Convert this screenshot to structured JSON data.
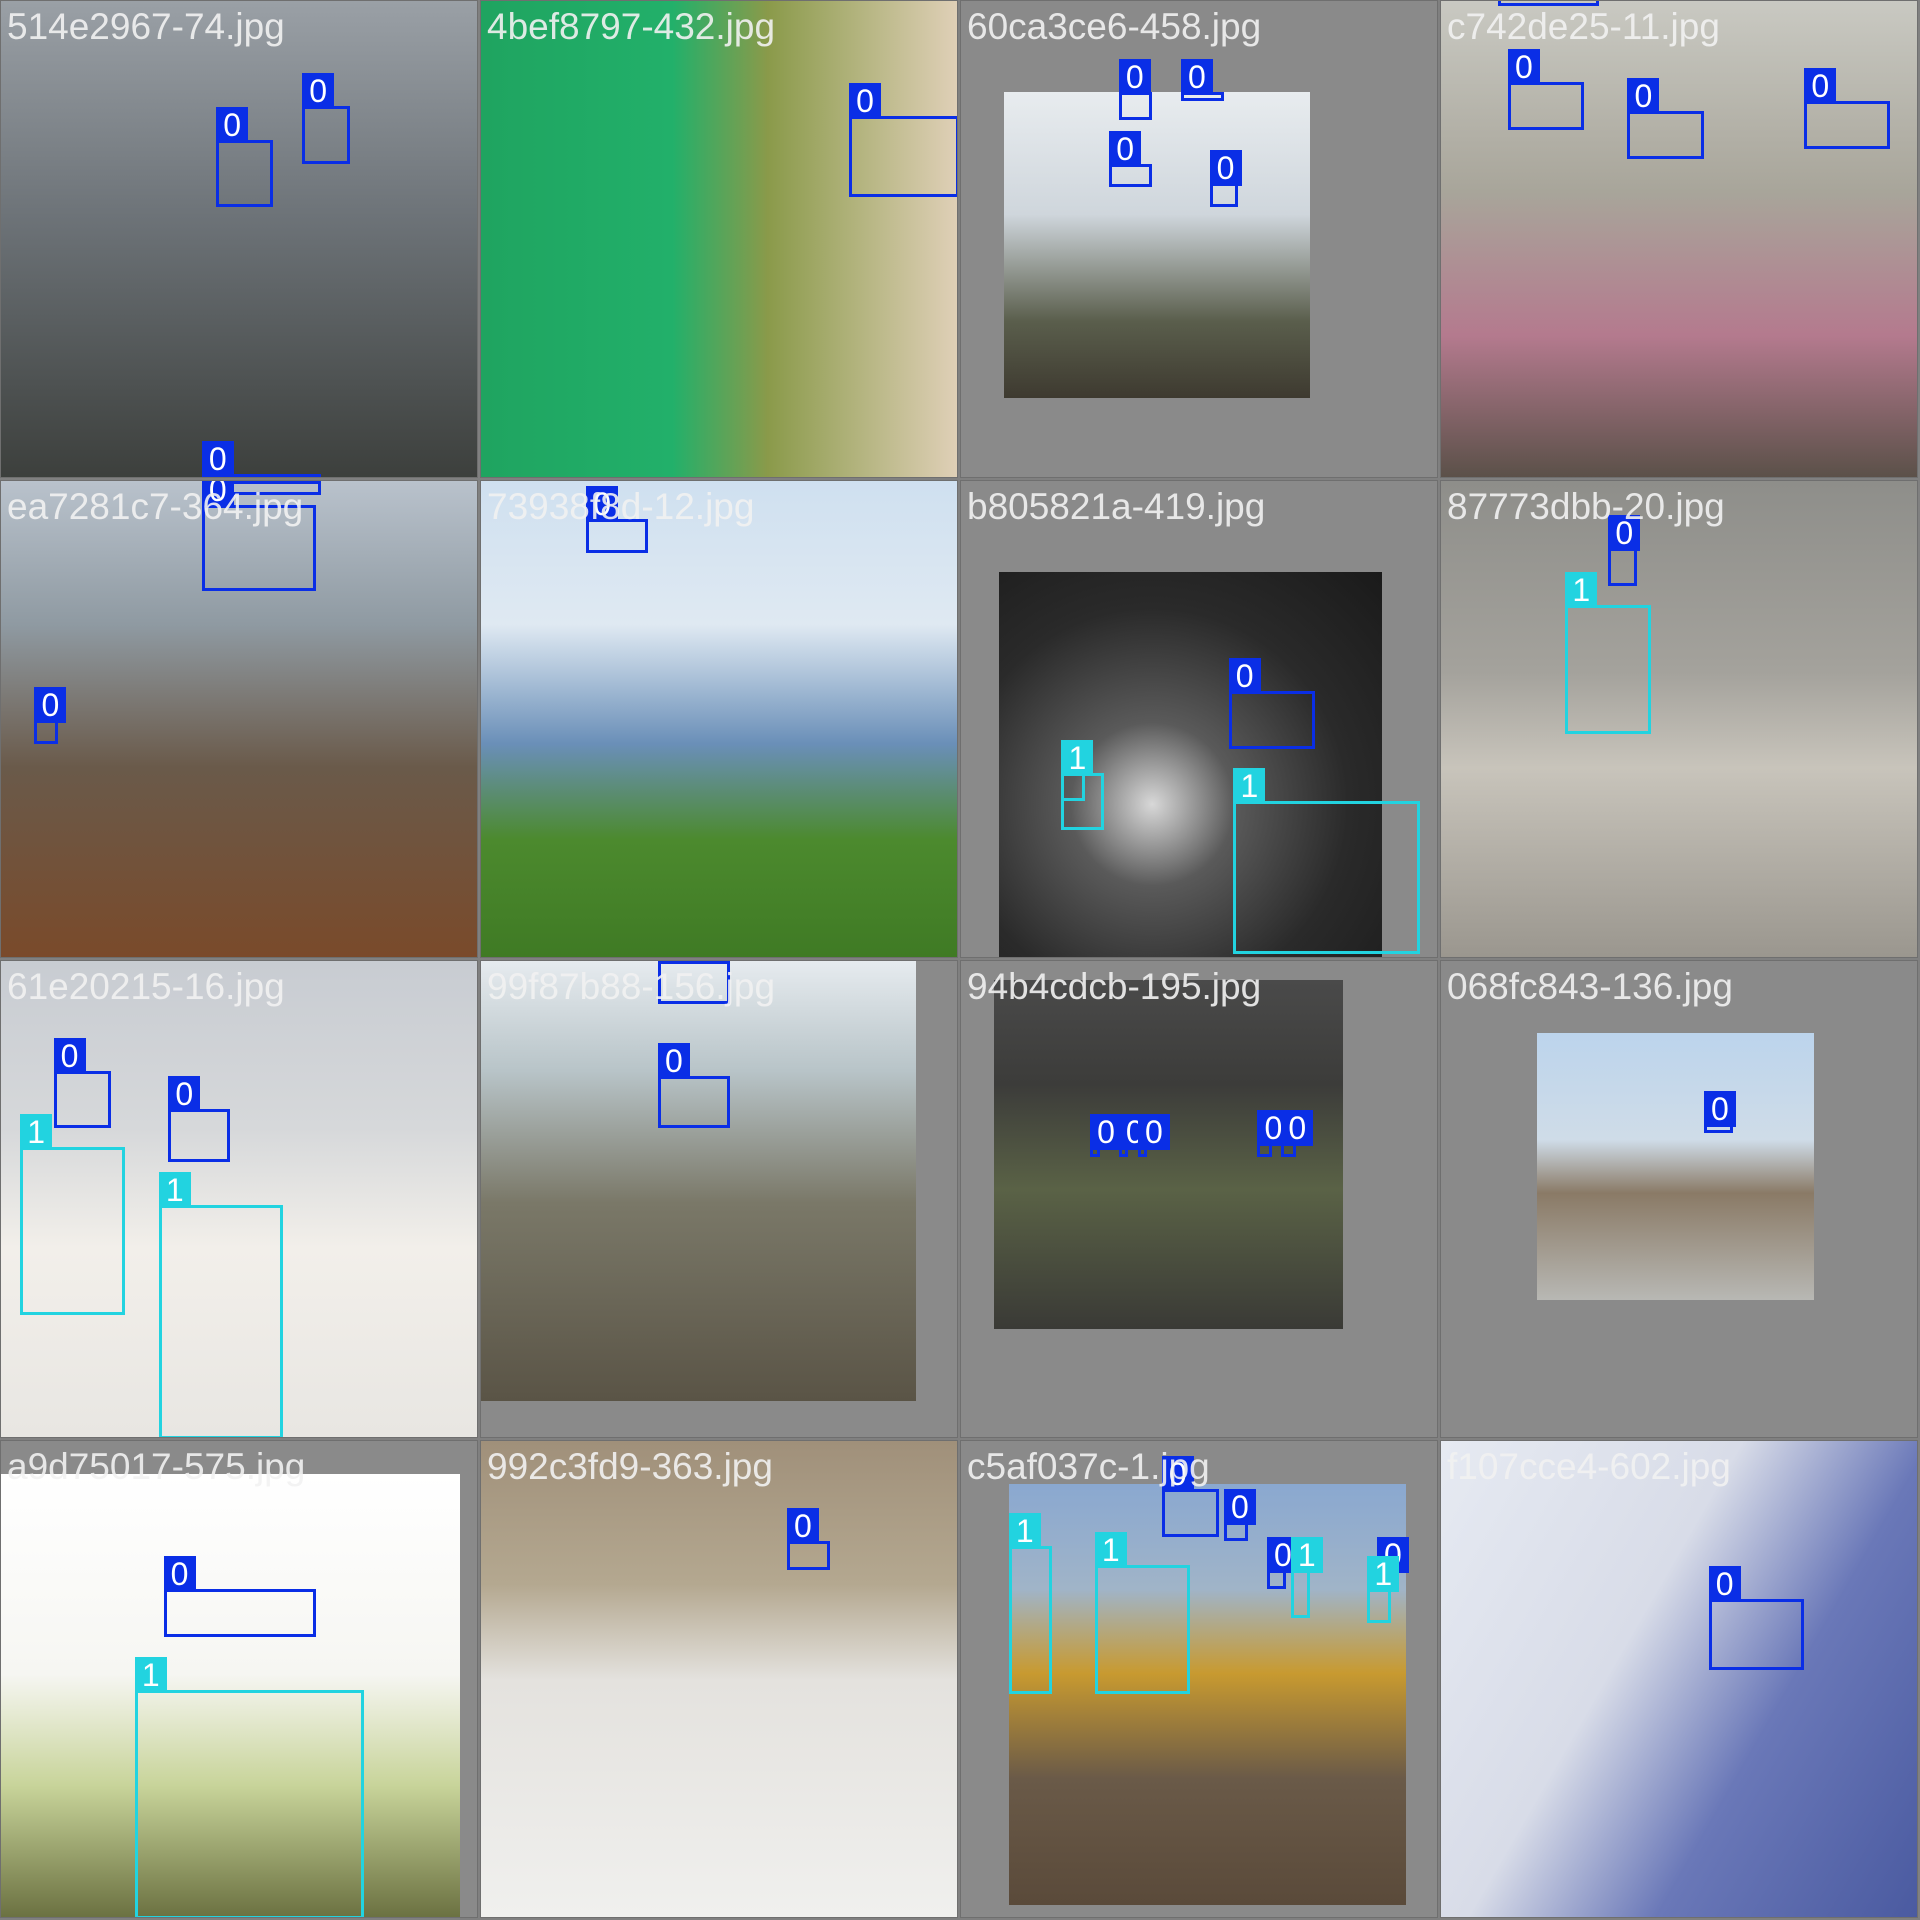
{
  "colors": {
    "class0": "#0a2ee6",
    "class1": "#22d3e0",
    "background": "#808080"
  },
  "tiles": [
    {
      "filename": "514e2967-74.jpg",
      "scene": "linear-gradient(180deg,#9aa0a6 0%,#6d7378 45%,#3c3f3c 100%)",
      "photo": [
        0,
        0,
        1,
        1
      ],
      "boxes": [
        {
          "cls": "0",
          "b": [
            0.45,
            0.29,
            0.57,
            0.43
          ]
        },
        {
          "cls": "0",
          "b": [
            0.63,
            0.22,
            0.73,
            0.34
          ]
        },
        {
          "cls": "0",
          "b": [
            0.42,
            0.99,
            0.67,
            1.04
          ]
        }
      ]
    },
    {
      "filename": "4bef8797-432.jpg",
      "scene": "linear-gradient(90deg,#1fa460 0%,#22b06a 40%,#8a9a4a 60%,#e0d0b8 100%)",
      "photo": [
        0,
        0,
        1,
        1
      ],
      "boxes": [
        {
          "cls": "0",
          "b": [
            0.77,
            0.24,
            1.0,
            0.41
          ]
        }
      ]
    },
    {
      "filename": "60ca3ce6-458.jpg",
      "scene": "linear-gradient(180deg,#e8ecef 0%,#cfd6dc 40%,#5a5e4c 75%,#3e3a30 100%)",
      "photo": [
        0.09,
        0.19,
        0.73,
        0.83
      ],
      "boxes": [
        {
          "cls": "0",
          "b": [
            0.33,
            0.19,
            0.4,
            0.25
          ]
        },
        {
          "cls": "0",
          "b": [
            0.46,
            0.19,
            0.55,
            0.21
          ]
        },
        {
          "cls": "0",
          "b": [
            0.31,
            0.34,
            0.4,
            0.39
          ]
        },
        {
          "cls": "0",
          "b": [
            0.52,
            0.38,
            0.58,
            0.43
          ]
        }
      ]
    },
    {
      "filename": "c742de25-11.jpg",
      "scene": "linear-gradient(180deg,#c9c9c2 0%,#a8a59a 40%,#b47a8e 70%,#5a5048 100%)",
      "photo": [
        0,
        0,
        1,
        1
      ],
      "boxes": [
        {
          "cls": "0",
          "b": [
            0.12,
            -0.02,
            0.33,
            0.01
          ]
        },
        {
          "cls": "0",
          "b": [
            0.14,
            0.17,
            0.3,
            0.27
          ]
        },
        {
          "cls": "0",
          "b": [
            0.39,
            0.23,
            0.55,
            0.33
          ]
        },
        {
          "cls": "0",
          "b": [
            0.76,
            0.21,
            0.94,
            0.31
          ]
        }
      ]
    },
    {
      "filename": "ea7281c7-364.jpg",
      "scene": "linear-gradient(180deg,#b9c2cc 0%,#8f9aa2 30%,#6a5a4a 60%,#7a4a2a 100%)",
      "photo": [
        0,
        0,
        1,
        1
      ],
      "boxes": [
        {
          "cls": "0",
          "b": [
            0.44,
            0.0,
            0.67,
            0.03
          ]
        },
        {
          "cls": "0",
          "b": [
            0.42,
            0.05,
            0.66,
            0.23
          ]
        },
        {
          "cls": "0",
          "b": [
            0.07,
            0.5,
            0.12,
            0.55
          ]
        }
      ]
    },
    {
      "filename": "73938f8d-12.jpg",
      "scene": "linear-gradient(180deg,#cfe0f0 0%,#dfe9f2 30%,#6a8fb8 55%,#4c8a2e 75%,#3f7a24 100%)",
      "photo": [
        0,
        0,
        1,
        1
      ],
      "boxes": [
        {
          "cls": "0",
          "b": [
            0.22,
            0.08,
            0.35,
            0.15
          ]
        }
      ]
    },
    {
      "filename": "b805821a-419.jpg",
      "scene": "radial-gradient(circle at 40% 60%,#d8d8d8 0%,#5a5a5a 25%,#2a2a2a 60%,#1a1a1a 100%)",
      "photo": [
        0.08,
        0.19,
        0.88,
        1
      ],
      "boxes": [
        {
          "cls": "0",
          "b": [
            0.56,
            0.44,
            0.74,
            0.56
          ]
        },
        {
          "cls": "1",
          "b": [
            0.57,
            0.67,
            0.96,
            0.99
          ]
        },
        {
          "cls": "1",
          "b": [
            0.21,
            0.61,
            0.26,
            0.67
          ]
        },
        {
          "cls": "1",
          "b": [
            0.21,
            0.61,
            0.3,
            0.73
          ]
        }
      ]
    },
    {
      "filename": "87773dbb-20.jpg",
      "scene": "linear-gradient(180deg,#8e8e8a 0%,#a4a29c 40%,#c8c4bb 60%,#9a968e 100%)",
      "photo": [
        0,
        0,
        1,
        1
      ],
      "boxes": [
        {
          "cls": "0",
          "b": [
            0.35,
            0.14,
            0.41,
            0.22
          ]
        },
        {
          "cls": "1",
          "b": [
            0.26,
            0.26,
            0.44,
            0.53
          ]
        }
      ]
    },
    {
      "filename": "61e20215-16.jpg",
      "scene": "linear-gradient(180deg,#c8ccd2 0%,#d6d8da 35%,#f2efea 60%,#e8e6e2 100%)",
      "photo": [
        0,
        0,
        1,
        1
      ],
      "boxes": [
        {
          "cls": "0",
          "b": [
            0.11,
            0.23,
            0.23,
            0.35
          ]
        },
        {
          "cls": "0",
          "b": [
            0.35,
            0.31,
            0.48,
            0.42
          ]
        },
        {
          "cls": "1",
          "b": [
            0.04,
            0.39,
            0.26,
            0.74
          ]
        },
        {
          "cls": "1",
          "b": [
            0.33,
            0.51,
            0.59,
            1.0
          ]
        }
      ]
    },
    {
      "filename": "99f87b88-156.jpg",
      "scene": "linear-gradient(180deg,#e6ebef 0%,#b8c4c8 25%,#7a7868 55%,#5a5446 100%)",
      "photo": [
        0,
        0,
        0.91,
        0.92
      ],
      "boxes": [
        {
          "cls": "0",
          "b": [
            0.37,
            0.0,
            0.52,
            0.09
          ]
        },
        {
          "cls": "0",
          "b": [
            0.37,
            0.24,
            0.52,
            0.35
          ]
        }
      ]
    },
    {
      "filename": "94b4cdcb-195.jpg",
      "scene": "linear-gradient(180deg,#4a4a4a 0%,#3c3c3a 30%,#5a6246 60%,#3a3a36 100%)",
      "photo": [
        0.07,
        0.04,
        0.8,
        0.77
      ],
      "boxes": [
        {
          "cls": "0",
          "b": [
            0.27,
            0.39,
            0.29,
            0.41
          ]
        },
        {
          "cls": "0",
          "b": [
            0.33,
            0.39,
            0.35,
            0.41
          ]
        },
        {
          "cls": "0",
          "b": [
            0.37,
            0.39,
            0.39,
            0.41
          ]
        },
        {
          "cls": "0",
          "b": [
            0.62,
            0.38,
            0.65,
            0.41
          ]
        },
        {
          "cls": "0",
          "b": [
            0.67,
            0.38,
            0.7,
            0.41
          ]
        }
      ]
    },
    {
      "filename": "068fc843-136.jpg",
      "scene": "linear-gradient(180deg,#bcd4ec 0%,#cfdce8 40%,#8a7a66 60%,#b8b8b4 100%)",
      "photo": [
        0.2,
        0.15,
        0.78,
        0.71
      ],
      "boxes": [
        {
          "cls": "0",
          "b": [
            0.55,
            0.34,
            0.61,
            0.36
          ]
        }
      ]
    },
    {
      "filename": "a9d75017-575.jpg",
      "scene": "linear-gradient(180deg,#ffffff 0%,#f6f6f2 45%,#c8d49a 70%,#6a7040 100%)",
      "photo": [
        0,
        0.07,
        0.96,
        1
      ],
      "boxes": [
        {
          "cls": "0",
          "b": [
            0.34,
            0.31,
            0.66,
            0.41
          ]
        },
        {
          "cls": "1",
          "b": [
            0.28,
            0.52,
            0.76,
            1.0
          ]
        }
      ]
    },
    {
      "filename": "992c3fd9-363.jpg",
      "scene": "linear-gradient(180deg,#a0907a 0%,#b4a890 30%,#e4e2de 50%,#f0f0ee 100%)",
      "photo": [
        0,
        0,
        1,
        1
      ],
      "boxes": [
        {
          "cls": "0",
          "b": [
            0.64,
            0.21,
            0.73,
            0.27
          ]
        }
      ]
    },
    {
      "filename": "c5af037c-1.jpg",
      "scene": "linear-gradient(180deg,#8aa8d0 0%,#a0b4c8 25%,#c89a30 45%,#6a5a48 70%,#5a4a3a 100%)",
      "photo": [
        0.1,
        0.09,
        0.93,
        0.97
      ],
      "boxes": [
        {
          "cls": "0",
          "b": [
            0.42,
            0.1,
            0.54,
            0.2
          ]
        },
        {
          "cls": "0",
          "b": [
            0.55,
            0.17,
            0.6,
            0.21
          ]
        },
        {
          "cls": "0",
          "b": [
            0.64,
            0.27,
            0.68,
            0.31
          ]
        },
        {
          "cls": "0",
          "b": [
            0.87,
            0.27,
            0.9,
            0.3
          ]
        },
        {
          "cls": "1",
          "b": [
            0.1,
            0.22,
            0.19,
            0.53
          ]
        },
        {
          "cls": "1",
          "b": [
            0.28,
            0.26,
            0.48,
            0.53
          ]
        },
        {
          "cls": "1",
          "b": [
            0.69,
            0.27,
            0.73,
            0.37
          ]
        },
        {
          "cls": "1",
          "b": [
            0.85,
            0.31,
            0.9,
            0.38
          ]
        }
      ]
    },
    {
      "filename": "f107cce4-602.jpg",
      "scene": "linear-gradient(120deg,#e6eaf2 0%,#d8dce8 40%,#6a78b8 65%,#4a5aa0 100%)",
      "photo": [
        0,
        0,
        1,
        1
      ],
      "boxes": [
        {
          "cls": "0",
          "b": [
            0.56,
            0.33,
            0.76,
            0.48
          ]
        }
      ]
    }
  ]
}
